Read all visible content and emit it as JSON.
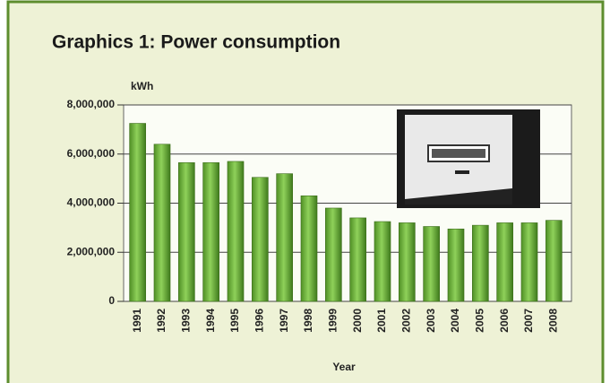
{
  "chart_data": {
    "type": "bar",
    "title": "Graphics 1:  Power consumption",
    "y_label": "kWh",
    "x_label": "Year",
    "categories": [
      "1991",
      "1992",
      "1993",
      "1994",
      "1995",
      "1996",
      "1997",
      "1998",
      "1999",
      "2000",
      "2001",
      "2002",
      "2003",
      "2004",
      "2005",
      "2006",
      "2007",
      "2008"
    ],
    "values": [
      7250000,
      6400000,
      5650000,
      5650000,
      5700000,
      5050000,
      5200000,
      4300000,
      3800000,
      3400000,
      3250000,
      3200000,
      3050000,
      2950000,
      3100000,
      3200000,
      3200000,
      3300000
    ],
    "color": "#6fb33a",
    "ylim": [
      0,
      8000000
    ],
    "yticks": [
      0,
      {
        "value": 2000000,
        "label": "2,000,000"
      },
      {
        "value": 4000000,
        "label": "4,000,000"
      },
      {
        "value": 6000000,
        "label": "6,000,000"
      },
      {
        "value": 8000000,
        "label": "8,000,000"
      }
    ],
    "grid": true
  }
}
